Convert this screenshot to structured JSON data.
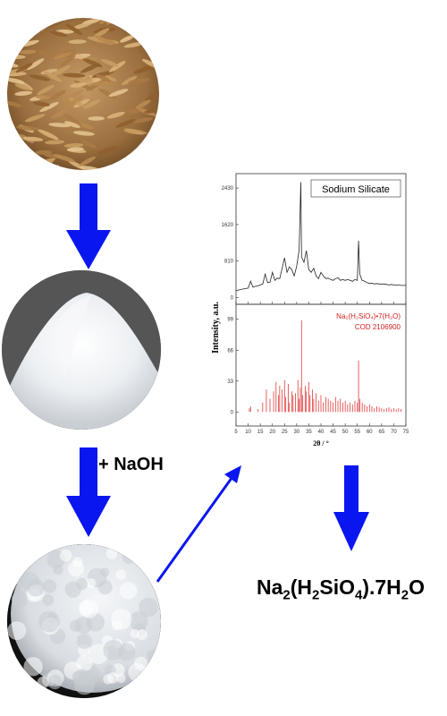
{
  "reagent_label": "+ NaOH",
  "product_formula": {
    "parts": [
      "Na",
      "2",
      "(H",
      "2",
      "SiO",
      "4",
      ").7H",
      "2",
      "O"
    ]
  },
  "colors": {
    "arrow": "#0a16f0",
    "reference_lines": "#e03a3a",
    "pattern_line": "#222222"
  },
  "chart_data": [
    {
      "type": "line",
      "legend": "Sodium Silicate",
      "ylabel": "Intensity, a.u.",
      "xlim": [
        5,
        75
      ],
      "ylim": [
        -150,
        2750
      ],
      "yticks": [
        0,
        810,
        1620,
        2430
      ],
      "series": [
        {
          "x": [
            5,
            7,
            9,
            10,
            11,
            12,
            13,
            14,
            15,
            16,
            17,
            18,
            19,
            20,
            21,
            22,
            23,
            24,
            25,
            26,
            27,
            28,
            29,
            30,
            31,
            31.7,
            32,
            33,
            34,
            35,
            36,
            37,
            38,
            39,
            40,
            41,
            42,
            43,
            44,
            45,
            46,
            47,
            48,
            49,
            50,
            51,
            52,
            53,
            54,
            55,
            55.5,
            56,
            57,
            58,
            59,
            60,
            61,
            62,
            63,
            64,
            65,
            66,
            67,
            68,
            69,
            70,
            71,
            72,
            73,
            74,
            75
          ],
          "y": [
            150,
            180,
            200,
            210,
            360,
            230,
            250,
            260,
            280,
            300,
            520,
            330,
            340,
            560,
            380,
            430,
            420,
            650,
            880,
            560,
            680,
            620,
            480,
            700,
            1050,
            2560,
            900,
            780,
            1040,
            620,
            560,
            650,
            480,
            420,
            560,
            480,
            420,
            430,
            400,
            380,
            420,
            440,
            380,
            400,
            380,
            400,
            380,
            360,
            400,
            380,
            1260,
            520,
            380,
            360,
            330,
            310,
            320,
            300,
            310,
            300,
            300,
            300,
            290,
            280,
            290,
            280,
            280,
            280,
            270,
            270,
            270
          ]
        }
      ]
    },
    {
      "type": "bar",
      "legend": [
        "Na₂(H₂SiO₄)•7(H₂O)",
        "COD 2106900"
      ],
      "xlabel": "2θ / °",
      "xlim": [
        5,
        75
      ],
      "ylim": [
        -15,
        115
      ],
      "xticks": [
        5,
        10,
        15,
        20,
        25,
        30,
        35,
        40,
        45,
        50,
        55,
        60,
        65,
        70,
        75
      ],
      "yticks": [
        0,
        33,
        66,
        99
      ],
      "series": [
        {
          "x": [
            10.5,
            11,
            14,
            16,
            17.5,
            19,
            20.5,
            21.5,
            22.5,
            23,
            24,
            25,
            25.5,
            26.5,
            27,
            28,
            28.5,
            29.5,
            30.5,
            31,
            31.5,
            32,
            32.5,
            33.5,
            34,
            35,
            35.5,
            36.5,
            37,
            38,
            39,
            40,
            41,
            42,
            43,
            44,
            45,
            46,
            47,
            48,
            49,
            50,
            51,
            52,
            53,
            54,
            55,
            55.5,
            56,
            57,
            58,
            59,
            60,
            61,
            62,
            63,
            64,
            65,
            66,
            67,
            68,
            69,
            70,
            71,
            72,
            73
          ],
          "y": [
            4,
            6,
            3,
            10,
            24,
            14,
            22,
            32,
            18,
            28,
            24,
            34,
            16,
            30,
            10,
            22,
            18,
            20,
            34,
            14,
            26,
            98,
            18,
            28,
            22,
            32,
            18,
            24,
            14,
            20,
            12,
            18,
            10,
            16,
            14,
            12,
            10,
            16,
            12,
            14,
            10,
            12,
            8,
            10,
            8,
            12,
            10,
            55,
            14,
            10,
            8,
            6,
            8,
            6,
            4,
            6,
            5,
            4,
            3,
            4,
            5,
            3,
            4,
            3,
            4,
            3
          ]
        }
      ]
    }
  ]
}
